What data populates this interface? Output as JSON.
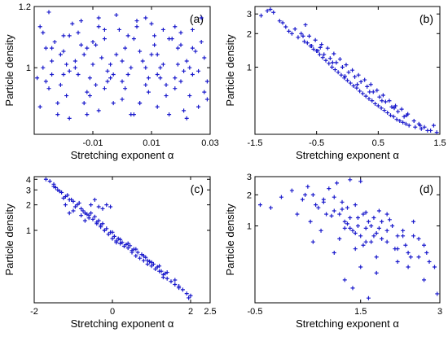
{
  "chart_data": [
    {
      "type": "scatter",
      "panel_tag": "(a)",
      "xlabel": "Stretching exponent α",
      "ylabel": "Particle density",
      "xscale": "linear",
      "yscale": "log",
      "xlim": [
        -0.03,
        0.03
      ],
      "ylim": [
        0.82,
        1.2
      ],
      "xticks": [
        -0.01,
        0.01,
        0.03
      ],
      "xtick_labels": [
        "-0.01",
        "0.01",
        "0.03"
      ],
      "yticks": [
        1,
        1.2
      ],
      "ytick_labels": [
        "1",
        "1.2"
      ],
      "marker_color": "#1a1acc",
      "series": [
        {
          "x": [
            -0.028,
            -0.026,
            -0.024,
            -0.022,
            -0.02,
            -0.018,
            -0.016,
            -0.014,
            -0.012,
            -0.01,
            -0.008,
            -0.006,
            -0.004,
            -0.002,
            0.0,
            0.002,
            0.004,
            0.006,
            0.008,
            0.01,
            0.012,
            0.014,
            0.016,
            0.018,
            0.02,
            0.022,
            0.024,
            0.026,
            0.028,
            -0.027,
            -0.023,
            -0.019,
            -0.015,
            -0.011,
            -0.007,
            -0.003,
            0.001,
            0.005,
            0.009,
            0.013,
            0.017,
            0.021,
            0.025,
            0.029,
            -0.025,
            -0.021,
            -0.017,
            -0.013,
            -0.009,
            -0.005,
            -0.001,
            0.003,
            0.007,
            0.011,
            0.015,
            0.019,
            0.023,
            0.027,
            -0.028,
            -0.024,
            -0.02,
            -0.016,
            -0.012,
            -0.008,
            -0.004,
            0.0,
            0.004,
            0.008,
            0.012,
            0.016,
            0.02,
            0.024,
            0.028,
            -0.026,
            -0.022,
            -0.018,
            -0.014,
            -0.01,
            -0.006,
            -0.002,
            0.002,
            0.006,
            0.01,
            0.014,
            0.018,
            0.022,
            0.026,
            -0.027,
            -0.021,
            -0.015,
            -0.009,
            -0.003,
            0.003,
            0.009,
            0.015,
            0.021,
            0.027,
            -0.024,
            -0.018,
            -0.012,
            -0.006,
            0.0,
            0.006,
            0.012,
            0.018,
            0.024,
            -0.029,
            -0.019,
            -0.013,
            -0.005,
            0.005,
            0.013,
            0.019,
            0.029,
            -0.025,
            -0.011,
            0.001,
            0.011,
            0.023,
            -0.02,
            -0.008,
            0.008,
            0.02
          ],
          "y": [
            1.13,
            0.96,
            1.06,
            0.9,
            1.1,
            0.86,
            1.02,
            1.15,
            0.93,
            1.08,
            0.88,
            1.12,
            0.97,
            1.04,
            0.91,
            1.1,
            0.87,
            1.05,
            0.95,
            1.14,
            0.89,
            1.01,
            1.09,
            0.94,
            1.07,
            0.86,
            1.12,
            0.99,
            1.03,
            1.0,
            1.08,
            0.92,
            1.11,
            0.97,
            1.03,
            0.9,
            1.06,
            1.13,
            0.93,
            1.0,
            1.09,
            0.88,
            1.05,
            0.96,
            0.94,
            1.04,
            1.14,
            0.9,
            1.07,
            0.99,
            1.12,
            0.87,
            1.02,
            1.1,
            0.95,
            1.06,
            0.92,
            1.08,
            0.89,
            0.98,
            1.05,
            1.0,
            0.87,
            1.13,
            1.01,
            0.96,
            1.09,
            1.0,
            1.04,
            0.87,
            1.11,
            0.98,
            0.93,
            1.06,
            0.87,
            0.99,
            1.07,
            1.01,
            0.94,
            1.17,
            0.98,
            0.9,
            1.04,
            1.12,
            0.97,
            1.02,
            0.89,
            1.11,
            0.95,
            0.98,
            0.95,
            0.98,
            1.0,
            0.97,
            0.92,
            0.99,
            1.16,
            1.02,
            1.1,
            1.06,
            1.09,
            1.02,
            0.9,
            0.98,
            1.13,
            1.06,
            0.97,
            1.01,
            1.04,
            0.96,
            1.15,
            0.97,
            1.01,
            0.91,
            1.18,
            0.92,
            0.94,
            1.07,
            1.0,
            0.98,
            1.16,
            1.16,
            0.96
          ]
        }
      ]
    },
    {
      "type": "scatter",
      "panel_tag": "(b)",
      "xlabel": "Stretching exponent α",
      "ylabel": "Particle density",
      "xscale": "linear",
      "yscale": "log",
      "xlim": [
        -1.5,
        1.5
      ],
      "ylim": [
        0.25,
        3.5
      ],
      "xticks": [
        -1.5,
        -0.5,
        0.5,
        1.5
      ],
      "xtick_labels": [
        "-1.5",
        "-0.5",
        "0.5",
        "1.5"
      ],
      "yticks": [
        1,
        2,
        3
      ],
      "ytick_labels": [
        "1",
        "2",
        "3"
      ],
      "marker_color": "#1a1acc",
      "series": [
        {
          "x": [
            -1.4,
            -1.3,
            -1.2,
            -1.1,
            -1.0,
            -0.9,
            -0.8,
            -0.75,
            -0.7,
            -0.65,
            -0.6,
            -0.55,
            -0.5,
            -0.45,
            -0.4,
            -0.35,
            -0.3,
            -0.25,
            -0.2,
            -0.15,
            -0.1,
            -0.05,
            0.0,
            0.05,
            0.1,
            0.15,
            0.2,
            0.25,
            0.3,
            0.35,
            0.4,
            0.45,
            0.5,
            0.55,
            0.6,
            0.65,
            0.7,
            0.75,
            0.8,
            0.85,
            0.9,
            0.95,
            1.0,
            1.1,
            1.2,
            1.3,
            1.4,
            1.45,
            -0.62,
            -0.52,
            -0.42,
            -0.32,
            -0.22,
            -0.12,
            -0.02,
            0.08,
            0.18,
            0.28,
            0.38,
            0.48,
            0.58,
            0.68,
            0.78,
            0.88,
            0.98,
            1.08,
            1.18,
            -0.58,
            -0.48,
            -0.38,
            -0.28,
            -0.18,
            -0.08,
            0.02,
            0.12,
            0.22,
            0.32,
            0.42,
            0.52,
            0.62,
            0.72,
            0.82,
            0.92,
            -0.68,
            -0.44,
            -0.24,
            -0.04,
            0.16,
            0.36,
            0.56,
            0.76,
            0.96,
            1.16,
            -1.25,
            -1.05,
            -0.95,
            -0.85,
            -0.72,
            1.35,
            1.25
          ],
          "y": [
            2.9,
            3.2,
            3.1,
            2.6,
            2.3,
            2.0,
            1.85,
            2.0,
            1.7,
            1.65,
            1.55,
            1.45,
            1.4,
            1.3,
            1.22,
            1.15,
            1.08,
            1.0,
            0.95,
            0.9,
            0.85,
            0.8,
            0.76,
            0.72,
            0.68,
            0.65,
            0.61,
            0.58,
            0.55,
            0.52,
            0.5,
            0.47,
            0.45,
            0.43,
            0.41,
            0.39,
            0.37,
            0.36,
            0.34,
            0.33,
            0.32,
            0.31,
            0.3,
            0.29,
            0.28,
            0.27,
            0.3,
            0.26,
            1.9,
            1.75,
            1.6,
            1.48,
            1.32,
            1.18,
            1.05,
            0.94,
            0.85,
            0.77,
            0.7,
            0.62,
            0.56,
            0.5,
            0.45,
            0.42,
            0.38,
            0.33,
            0.3,
            1.55,
            1.4,
            1.3,
            1.2,
            1.1,
            1.0,
            0.9,
            0.82,
            0.74,
            0.67,
            0.6,
            0.54,
            0.49,
            0.44,
            0.4,
            0.36,
            2.4,
            1.5,
            1.1,
            0.83,
            0.7,
            0.6,
            0.5,
            0.43,
            0.37,
            0.31,
            3.3,
            2.5,
            2.1,
            2.2,
            1.9,
            0.27,
            0.29
          ]
        }
      ]
    },
    {
      "type": "scatter",
      "panel_tag": "(c)",
      "xlabel": "Stretching exponent α",
      "ylabel": "Particle density",
      "xscale": "linear",
      "yscale": "log",
      "xlim": [
        -2,
        2.5
      ],
      "ylim": [
        0.14,
        4.3
      ],
      "xticks": [
        -2,
        0,
        2,
        2.5
      ],
      "xtick_labels": [
        "-2",
        "0",
        "2",
        "2.5"
      ],
      "yticks": [
        1,
        2,
        3,
        4
      ],
      "ytick_labels": [
        "1",
        "2",
        "3",
        "4"
      ],
      "marker_color": "#1a1acc",
      "series": [
        {
          "x": [
            -1.7,
            -1.6,
            -1.5,
            -1.4,
            -1.3,
            -1.2,
            -1.1,
            -1.0,
            -0.9,
            -0.8,
            -0.7,
            -0.6,
            -0.5,
            -0.4,
            -0.3,
            -0.2,
            -0.1,
            0.0,
            0.1,
            0.2,
            0.3,
            0.4,
            0.5,
            0.6,
            0.7,
            0.8,
            0.9,
            1.0,
            1.1,
            1.2,
            1.3,
            1.4,
            1.5,
            1.6,
            1.7,
            1.8,
            1.9,
            2.0,
            -1.45,
            -1.35,
            -1.25,
            -1.15,
            -1.05,
            -0.95,
            -0.85,
            -0.75,
            -0.65,
            -0.55,
            -0.45,
            -0.35,
            -0.25,
            -0.15,
            -0.05,
            0.05,
            0.15,
            0.25,
            0.35,
            0.45,
            0.55,
            0.65,
            0.75,
            0.85,
            0.95,
            1.05,
            1.15,
            1.25,
            1.35,
            -1.2,
            -1.0,
            -0.8,
            -0.6,
            -0.4,
            -0.2,
            0.0,
            0.2,
            0.4,
            0.6,
            0.8,
            1.0,
            1.2,
            1.4,
            1.6,
            -0.55,
            -0.45,
            -0.35,
            -0.25,
            -0.15,
            -0.05,
            -1.5,
            -1.1,
            -0.7,
            -0.3,
            0.1,
            0.5,
            0.9,
            1.3,
            1.7,
            1.95
          ],
          "y": [
            4.0,
            3.8,
            3.3,
            3.0,
            2.8,
            2.5,
            2.3,
            2.2,
            2.0,
            1.8,
            1.6,
            1.5,
            1.35,
            1.2,
            1.1,
            1.0,
            0.9,
            0.8,
            0.75,
            0.7,
            0.65,
            0.62,
            0.55,
            0.5,
            0.47,
            0.44,
            0.4,
            0.38,
            0.35,
            0.33,
            0.3,
            0.27,
            0.25,
            0.23,
            0.21,
            0.2,
            0.18,
            0.17,
            3.2,
            2.9,
            2.4,
            2.6,
            2.3,
            1.9,
            2.1,
            1.7,
            1.55,
            1.6,
            1.45,
            1.3,
            1.2,
            1.05,
            0.95,
            0.85,
            0.8,
            0.72,
            0.68,
            0.66,
            0.6,
            0.55,
            0.52,
            0.48,
            0.43,
            0.4,
            0.37,
            0.33,
            0.31,
            2.0,
            1.7,
            1.5,
            1.4,
            1.25,
            1.0,
            0.95,
            0.78,
            0.7,
            0.6,
            0.5,
            0.42,
            0.38,
            0.32,
            0.26,
            2.0,
            2.3,
            1.9,
            1.8,
            2.0,
            1.9,
            3.5,
            1.6,
            1.3,
            1.15,
            0.72,
            0.58,
            0.44,
            0.28,
            0.22,
            0.16
          ]
        }
      ]
    },
    {
      "type": "scatter",
      "panel_tag": "(d)",
      "xlabel": "Stretching exponent α",
      "ylabel": "Particle density",
      "xscale": "linear",
      "yscale": "log",
      "xlim": [
        -0.5,
        3
      ],
      "ylim": [
        0.18,
        3.0
      ],
      "xticks": [
        -0.5,
        1.5,
        3
      ],
      "xtick_labels": [
        "-0.5",
        "1.5",
        "3"
      ],
      "yticks": [
        1,
        2,
        3
      ],
      "ytick_labels": [
        "1",
        "2",
        "3"
      ],
      "marker_color": "#1a1acc",
      "series": [
        {
          "x": [
            -0.4,
            -0.2,
            0.0,
            0.2,
            0.4,
            0.5,
            0.6,
            0.7,
            0.8,
            0.9,
            1.0,
            1.05,
            1.1,
            1.15,
            1.2,
            1.25,
            1.3,
            1.35,
            1.4,
            1.45,
            1.5,
            1.55,
            1.6,
            1.65,
            1.7,
            1.75,
            1.8,
            1.85,
            1.9,
            2.0,
            2.1,
            2.2,
            2.3,
            2.4,
            2.5,
            2.6,
            2.7,
            2.8,
            2.9,
            0.3,
            0.55,
            0.75,
            0.95,
            1.1,
            1.25,
            1.4,
            1.55,
            1.7,
            1.85,
            2.0,
            2.15,
            2.3,
            2.45,
            2.6,
            2.75,
            0.45,
            0.65,
            0.85,
            1.0,
            1.15,
            1.3,
            1.45,
            1.6,
            1.75,
            1.9,
            2.05,
            2.2,
            2.35,
            2.5,
            0.6,
            0.8,
            1.0,
            1.2,
            1.4,
            1.6,
            1.8,
            2.0,
            2.2,
            2.4,
            1.2,
            1.35,
            1.5,
            1.65,
            1.8,
            1.5,
            1.3,
            2.7,
            2.95
          ],
          "y": [
            1.6,
            1.5,
            1.9,
            2.2,
            1.8,
            2.4,
            2.0,
            1.5,
            1.7,
            2.3,
            1.4,
            2.6,
            1.3,
            1.7,
            1.1,
            1.5,
            1.2,
            0.9,
            1.6,
            1.0,
            0.8,
            1.3,
            0.95,
            1.1,
            0.7,
            1.2,
            0.85,
            1.4,
            0.75,
            0.9,
            1.0,
            0.6,
            0.8,
            0.55,
            1.1,
            0.5,
            0.65,
            0.45,
            0.4,
            1.3,
            1.1,
            0.9,
            1.25,
            0.75,
            1.05,
            0.85,
            0.65,
            1.0,
            0.95,
            0.7,
            0.6,
            0.9,
            0.5,
            0.75,
            0.55,
            2.0,
            1.6,
            1.3,
            1.9,
            1.45,
            0.95,
            1.2,
            1.35,
            0.8,
            1.1,
            1.15,
            0.8,
            0.65,
            0.8,
            0.7,
            1.8,
            0.55,
            0.95,
            0.6,
            0.7,
            0.5,
            1.3,
            0.45,
            0.4,
            0.3,
            0.25,
            0.4,
            0.2,
            0.35,
            2.7,
            2.8,
            0.3,
            0.22
          ]
        }
      ]
    }
  ]
}
